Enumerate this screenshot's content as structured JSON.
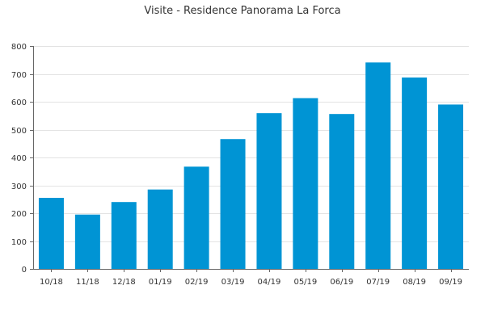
{
  "chart_data": {
    "type": "bar",
    "title": "Visite - Residence Panorama La Forca",
    "xlabel": "",
    "ylabel": "",
    "categories": [
      "10/18",
      "11/18",
      "12/18",
      "01/19",
      "02/19",
      "03/19",
      "04/19",
      "05/19",
      "06/19",
      "07/19",
      "08/19",
      "09/19"
    ],
    "values": [
      255,
      195,
      240,
      285,
      367,
      466,
      559,
      613,
      556,
      741,
      687,
      590
    ],
    "ylim": [
      0,
      800
    ],
    "yticks": [
      0,
      100,
      200,
      300,
      400,
      500,
      600,
      700,
      800
    ],
    "grid": true,
    "legend": "none",
    "colors": {
      "bar": "#0094d4",
      "grid": "#e3e3e3",
      "axis": "#666666"
    }
  }
}
